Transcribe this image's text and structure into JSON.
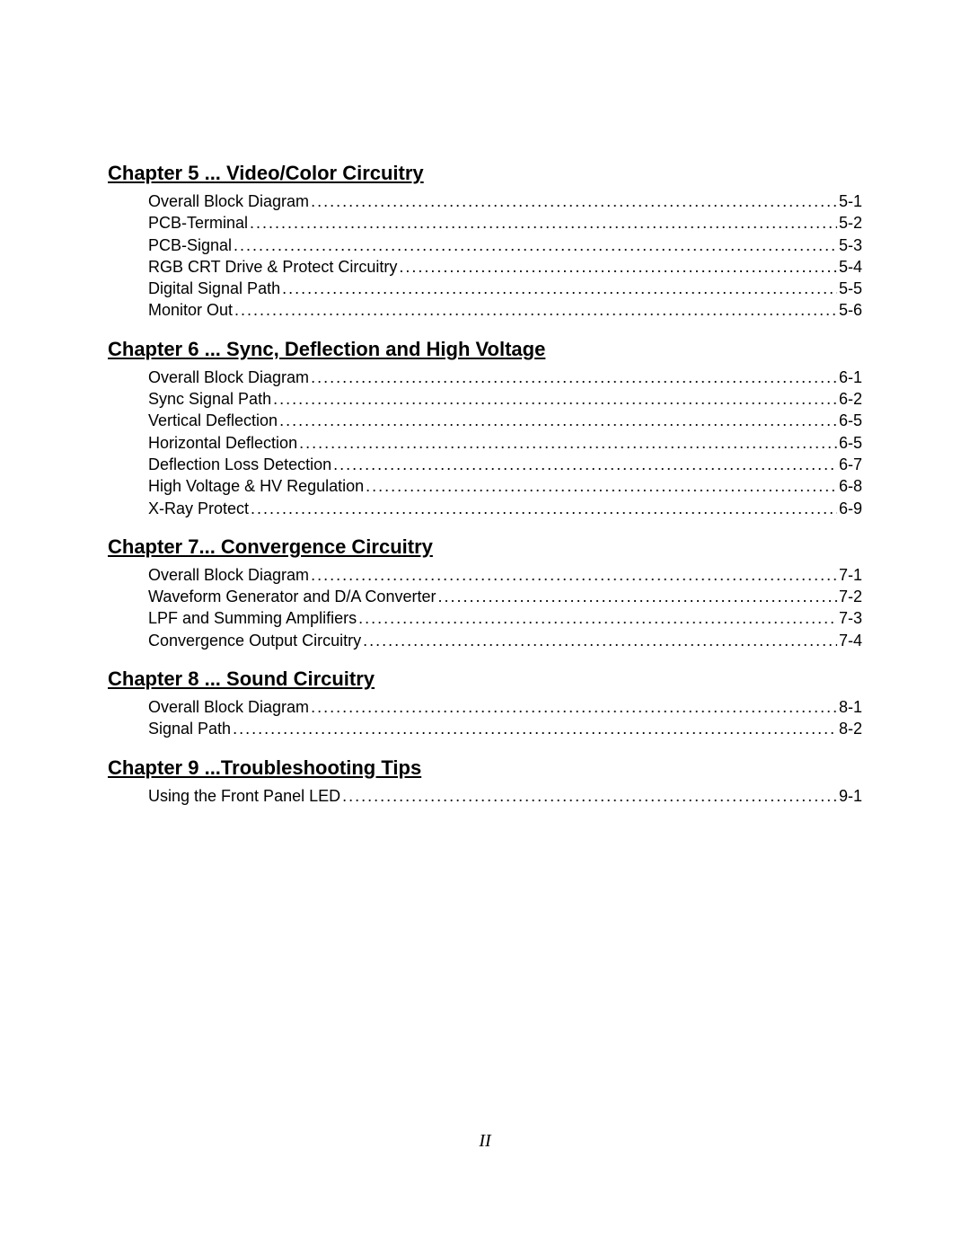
{
  "background_color": "#ffffff",
  "text_color": "#000000",
  "heading_fontsize": 22,
  "entry_fontsize": 18,
  "page_number": "II",
  "chapters": [
    {
      "heading": "Chapter 5 ... Video/Color Circuitry",
      "entries": [
        {
          "label": "Overall Block Diagram",
          "page": "5-1"
        },
        {
          "label": "PCB-Terminal",
          "page": "5-2"
        },
        {
          "label": "PCB-Signal",
          "page": "5-3"
        },
        {
          "label": "RGB CRT Drive & Protect Circuitry",
          "page": "5-4"
        },
        {
          "label": "Digital Signal Path",
          "page": "5-5"
        },
        {
          "label": "Monitor Out",
          "page": "5-6"
        }
      ]
    },
    {
      "heading": "Chapter 6 ... Sync, Deflection and High Voltage",
      "entries": [
        {
          "label": "Overall Block Diagram",
          "page": "6-1"
        },
        {
          "label": "Sync Signal Path",
          "page": "6-2"
        },
        {
          "label": "Vertical Deflection",
          "page": "6-5"
        },
        {
          "label": "Horizontal Deflection",
          "page": "6-5"
        },
        {
          "label": "Deflection Loss Detection",
          "page": "6-7"
        },
        {
          "label": "High Voltage & HV Regulation",
          "page": "6-8"
        },
        {
          "label": "X-Ray Protect",
          "page": "6-9"
        }
      ]
    },
    {
      "heading": "Chapter 7... Convergence Circuitry",
      "entries": [
        {
          "label": "Overall Block Diagram",
          "page": "7-1"
        },
        {
          "label": "Waveform Generator and D/A Converter",
          "page": "7-2"
        },
        {
          "label": "LPF and Summing Amplifiers",
          "page": "7-3"
        },
        {
          "label": "Convergence Output Circuitry",
          "page": "7-4"
        }
      ]
    },
    {
      "heading": "Chapter 8 ... Sound Circuitry",
      "entries": [
        {
          "label": "Overall Block Diagram",
          "page": "8-1"
        },
        {
          "label": "Signal Path",
          "page": "8-2"
        }
      ]
    },
    {
      "heading": "Chapter 9 ...Troubleshooting Tips",
      "entries": [
        {
          "label": "Using the Front Panel LED",
          "page": "9-1"
        }
      ]
    }
  ]
}
